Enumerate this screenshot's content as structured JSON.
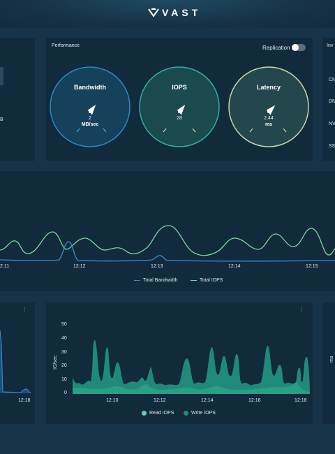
{
  "brand": {
    "name": "VAST"
  },
  "performance": {
    "title": "Performance",
    "replication_label": "Replication",
    "replication_on": false,
    "gauges": [
      {
        "title": "Bandwidth",
        "value": "2",
        "unit": "MB/sec",
        "color": "#2a88c9"
      },
      {
        "title": "IOPS",
        "value": "28",
        "unit": "",
        "color": "#2bb39a"
      },
      {
        "title": "Latency",
        "value": "2.44",
        "unit": "ms",
        "color": "#c9d6a8"
      }
    ]
  },
  "left_panel": {
    "partial_value": "B"
  },
  "inventory": {
    "title": "Inv",
    "items": [
      "CN",
      "DN",
      "NV",
      "SS"
    ]
  },
  "timeline": {
    "x_ticks": [
      "2:11",
      "12:12",
      "12:13",
      "12:14",
      "12:15"
    ],
    "legend": [
      {
        "name": "Total Bandwidth",
        "color": "#3a8fd0"
      },
      {
        "name": "Total IOPS",
        "color": "#7ed69a"
      }
    ]
  },
  "bw_panel": {
    "x_ticks": [
      "12:18"
    ]
  },
  "iops_panel": {
    "ylabel": "IO/sec",
    "y_ticks": [
      "50",
      "40",
      "30",
      "20",
      "10",
      "0"
    ],
    "x_ticks": [
      "12:10",
      "12:12",
      "12:14",
      "12:16",
      "12:18"
    ],
    "legend": [
      {
        "name": "Read IOPS",
        "color": "#5fd3a8"
      },
      {
        "name": "Write IOPS",
        "color": "#1f8a7a"
      }
    ]
  },
  "right_panel": {
    "ylabel": "ms"
  }
}
